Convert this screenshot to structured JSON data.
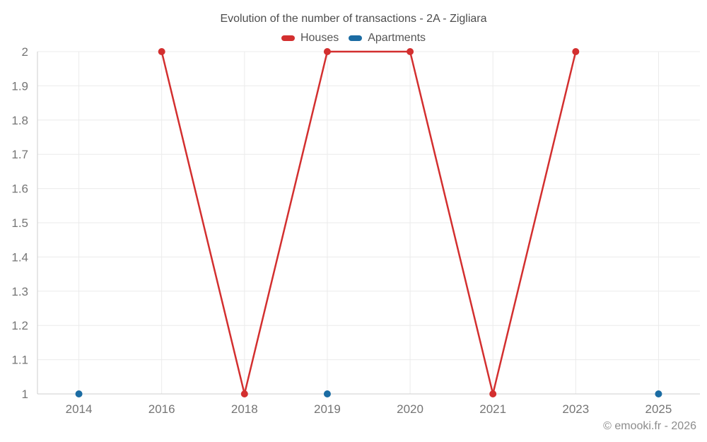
{
  "chart_data": {
    "type": "line",
    "title": "Evolution of the number of transactions - 2A - Zigliara",
    "categories": [
      "2014",
      "2016",
      "2018",
      "2019",
      "2020",
      "2021",
      "2023",
      "2025"
    ],
    "series": [
      {
        "name": "Houses",
        "color": "#d32f2f",
        "values": [
          null,
          2,
          1,
          2,
          2,
          1,
          2,
          null
        ]
      },
      {
        "name": "Apartments",
        "color": "#1b6ca3",
        "values": [
          1,
          null,
          null,
          1,
          null,
          null,
          null,
          1
        ]
      }
    ],
    "xlabel": "",
    "ylabel": "",
    "ylim": [
      1,
      2
    ],
    "y_ticks": [
      "1",
      "1.1",
      "1.2",
      "1.3",
      "1.4",
      "1.5",
      "1.6",
      "1.7",
      "1.8",
      "1.9",
      "2"
    ],
    "grid": true,
    "legend_position": "top",
    "footer": "© emooki.fr - 2026"
  }
}
